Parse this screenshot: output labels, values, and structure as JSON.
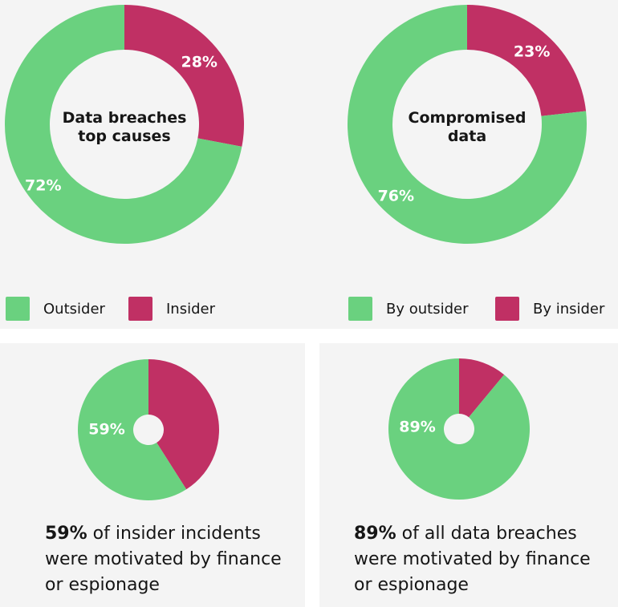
{
  "colors": {
    "green": "#6ad17f",
    "pink": "#c03064"
  },
  "chart_data": [
    {
      "type": "pie",
      "title": "Data breaches top causes",
      "categories": [
        "Outsider",
        "Insider"
      ],
      "values": [
        72,
        28
      ],
      "slice_labels": [
        "72%",
        "28%"
      ],
      "legend": [
        "Outsider",
        "Insider"
      ]
    },
    {
      "type": "pie",
      "title": "Compromised data",
      "categories": [
        "By outsider",
        "By insider"
      ],
      "values": [
        76,
        23
      ],
      "slice_labels": [
        "76%",
        "23%"
      ],
      "legend": [
        "By outsider",
        "By insider"
      ]
    },
    {
      "type": "pie",
      "values": [
        59,
        41
      ],
      "slice_labels": [
        "59%"
      ],
      "caption": {
        "bold": "59%",
        "text": " of insider incidents were motivated by finance or espionage"
      }
    },
    {
      "type": "pie",
      "values": [
        89,
        11
      ],
      "slice_labels": [
        "89%"
      ],
      "caption": {
        "bold": "89%",
        "text": " of all data breaches were motivated by finance or espionage"
      }
    }
  ]
}
